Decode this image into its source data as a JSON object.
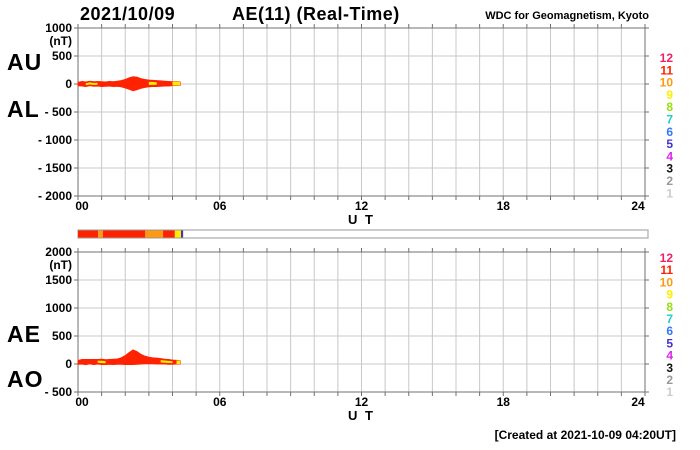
{
  "header": {
    "date": "2021/10/09",
    "title": "AE(11) (Real-Time)",
    "credit": "WDC for Geomagnetism, Kyoto"
  },
  "footer": {
    "created_note": "[Created at 2021-10-09 04:20UT]"
  },
  "side_labels": {
    "au": "AU",
    "al": "AL",
    "ae": "AE",
    "ao": "AO"
  },
  "legend": {
    "values": [
      "12",
      "11",
      "10",
      "9",
      "8",
      "7",
      "6",
      "5",
      "4",
      "3",
      "2",
      "1"
    ],
    "colors": [
      "#ee2266",
      "#ff2200",
      "#ff9911",
      "#ffee00",
      "#99dd11",
      "#22cccc",
      "#3377ff",
      "#4433cc",
      "#dd22ee",
      "#111111",
      "#999999",
      "#cccccc"
    ]
  },
  "quality_bar": {
    "segments": [
      {
        "t0": 0.0,
        "t1": 0.85,
        "color": "#ff2200"
      },
      {
        "t0": 0.85,
        "t1": 1.05,
        "color": "#ff9911"
      },
      {
        "t0": 1.05,
        "t1": 2.85,
        "color": "#ff2200"
      },
      {
        "t0": 2.85,
        "t1": 3.6,
        "color": "#ff9911"
      },
      {
        "t0": 3.6,
        "t1": 4.1,
        "color": "#ff2200"
      },
      {
        "t0": 4.1,
        "t1": 4.36,
        "color": "#ffee00"
      },
      {
        "t0": 4.36,
        "t1": 4.45,
        "color": "#4433bb"
      }
    ]
  },
  "chart_data": [
    {
      "type": "area",
      "title": "AU and AL indices",
      "ylabel": "(nT)",
      "ylim": [
        -2000,
        1000
      ],
      "ytick_values": [
        1000,
        500,
        0,
        -500,
        -1000,
        -1500,
        -2000
      ],
      "ytick_labels": [
        "1000",
        "500",
        "0",
        "- 500",
        "- 1000",
        "- 1500",
        "- 2000"
      ],
      "xlim": [
        0,
        24
      ],
      "xtick_values": [
        0,
        6,
        12,
        18,
        24
      ],
      "xtick_labels": [
        "00",
        "06",
        "12",
        "18",
        "24"
      ],
      "xlabel": "U T",
      "grid": true,
      "x_hours": [
        0,
        0.17,
        0.33,
        0.5,
        0.67,
        0.83,
        1,
        1.17,
        1.33,
        1.5,
        1.67,
        1.83,
        2,
        2.17,
        2.33,
        2.5,
        2.67,
        2.83,
        3,
        3.17,
        3.33,
        3.5,
        3.67,
        3.83,
        4,
        4.17,
        4.33
      ],
      "series": [
        {
          "name": "AU",
          "color": "#ff2200",
          "values": [
            30,
            45,
            35,
            50,
            40,
            45,
            40,
            35,
            45,
            40,
            50,
            60,
            80,
            110,
            130,
            120,
            95,
            80,
            70,
            65,
            60,
            55,
            50,
            45,
            40,
            40,
            35
          ]
        },
        {
          "name": "AL",
          "color": "#ff2200",
          "values": [
            -30,
            -35,
            -45,
            -30,
            -40,
            -35,
            -45,
            -40,
            -35,
            -45,
            -40,
            -50,
            -70,
            -95,
            -120,
            -100,
            -75,
            -60,
            -50,
            -45,
            -45,
            -40,
            -35,
            -35,
            -30,
            -25,
            -20
          ]
        }
      ],
      "highlight_segments": [
        {
          "t0": 0.3,
          "t1": 0.95,
          "style": "streak",
          "color": "#ffee00"
        },
        {
          "t0": 3.0,
          "t1": 3.45,
          "style": "streak",
          "color": "#ffee00"
        },
        {
          "t0": 4.0,
          "t1": 4.33,
          "style": "full",
          "color": "#ffee00"
        }
      ]
    },
    {
      "type": "area",
      "title": "AE and AO indices",
      "ylabel": "(nT)",
      "ylim": [
        -500,
        2000
      ],
      "ytick_values": [
        2000,
        1500,
        1000,
        500,
        0,
        -500
      ],
      "ytick_labels": [
        "2000",
        "1500",
        "1000",
        "500",
        "0",
        "- 500"
      ],
      "xlim": [
        0,
        24
      ],
      "xtick_values": [
        0,
        6,
        12,
        18,
        24
      ],
      "xtick_labels": [
        "00",
        "06",
        "12",
        "18",
        "24"
      ],
      "xlabel": "U T",
      "grid": true,
      "x_hours": [
        0,
        0.17,
        0.33,
        0.5,
        0.67,
        0.83,
        1,
        1.17,
        1.33,
        1.5,
        1.67,
        1.83,
        2,
        2.17,
        2.33,
        2.5,
        2.67,
        2.83,
        3,
        3.17,
        3.33,
        3.5,
        3.67,
        3.83,
        4,
        4.17,
        4.33
      ],
      "series": [
        {
          "name": "AE",
          "color": "#ff2200",
          "values": [
            60,
            80,
            80,
            80,
            80,
            80,
            85,
            75,
            80,
            85,
            90,
            110,
            150,
            205,
            250,
            220,
            170,
            140,
            120,
            110,
            105,
            95,
            85,
            80,
            70,
            65,
            55
          ]
        },
        {
          "name": "AO",
          "color": "#ff2200",
          "values": [
            -5,
            0,
            -10,
            5,
            -10,
            0,
            -10,
            -10,
            -5,
            -10,
            -5,
            -5,
            -10,
            -8,
            -10,
            -5,
            0,
            5,
            5,
            5,
            0,
            0,
            0,
            -5,
            -5,
            0,
            0
          ]
        }
      ],
      "highlight_segments": [
        {
          "t0": 0.72,
          "t1": 1.3,
          "style": "streak",
          "color": "#ffee00"
        },
        {
          "t0": 3.45,
          "t1": 4.05,
          "style": "streak",
          "color": "#ffee00"
        },
        {
          "t0": 4.05,
          "t1": 4.33,
          "style": "full",
          "color": "#ffee00"
        }
      ]
    }
  ]
}
